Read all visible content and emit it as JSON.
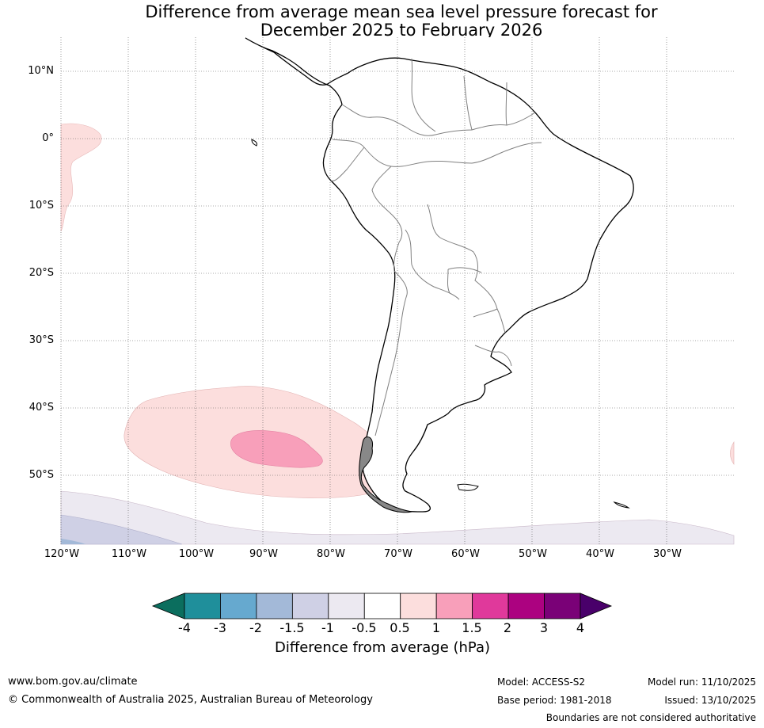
{
  "title_line1": "Difference from average mean sea level pressure forecast for",
  "title_line2": "December 2025 to February 2026",
  "lat_labels": [
    "10°N",
    "0°",
    "10°S",
    "20°S",
    "30°S",
    "40°S",
    "50°S"
  ],
  "lon_labels": [
    "120°W",
    "110°W",
    "100°W",
    "90°W",
    "80°W",
    "70°W",
    "60°W",
    "50°W",
    "40°W",
    "30°W"
  ],
  "colorbar": {
    "title": "Difference from average (hPa)",
    "ticks": [
      "-4",
      "-3",
      "-2",
      "-1.5",
      "-1",
      "-0.5",
      "0.5",
      "1",
      "1.5",
      "2",
      "3",
      "4"
    ],
    "colors": [
      "#0b6e5e",
      "#1f8f9b",
      "#66a9cf",
      "#a3b9d8",
      "#cfd0e5",
      "#ece9f1",
      "#ffffff",
      "#fcdedd",
      "#f89fba",
      "#e0399b",
      "#ac0280",
      "#7a0177",
      "#49006a"
    ]
  },
  "contour_colors": {
    "pos_0_5": "#fcdedd",
    "pos_1": "#f89fba",
    "neg_0_5": "#ece9f1",
    "neg_1": "#cfd0e5",
    "neg_1_5": "#a3b9d8"
  },
  "footer": {
    "website": "www.bom.gov.au/climate",
    "copyright": "© Commonwealth of Australia 2025, Australian Bureau of Meteorology",
    "model": "Model: ACCESS-S2",
    "base_period": "Base period: 1981-2018",
    "model_run": "Model run: 11/10/2025",
    "issued": "Issued: 13/10/2025",
    "disclaimer": "Boundaries are not considered authoritative"
  }
}
